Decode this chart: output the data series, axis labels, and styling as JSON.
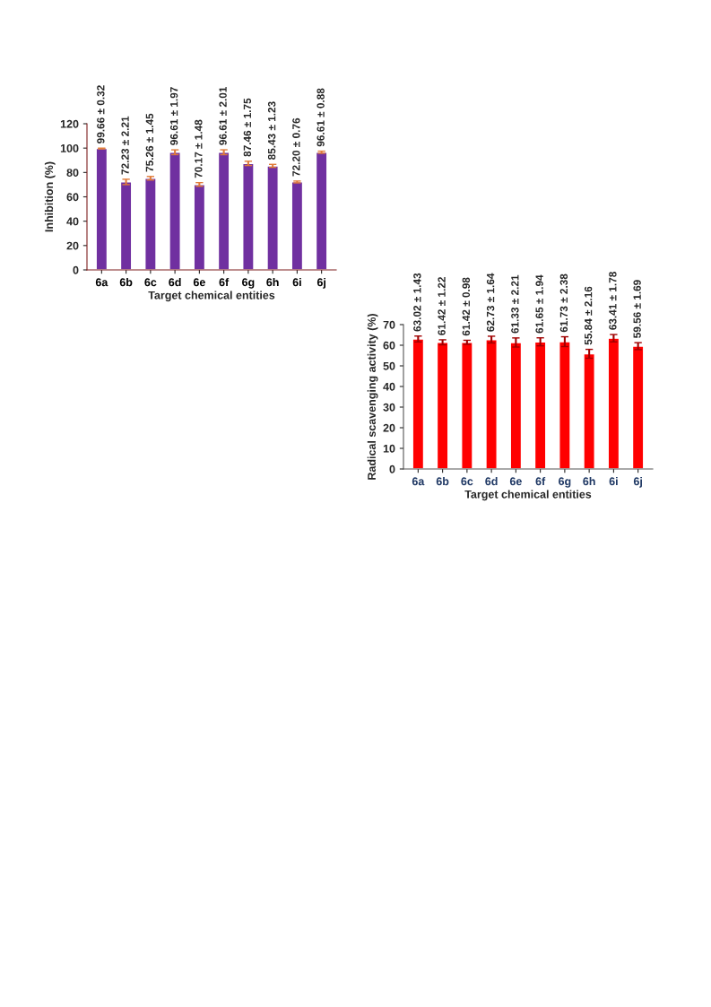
{
  "chart_data": [
    {
      "type": "bar",
      "xlabel": "Target chemical entities",
      "ylabel": "Inhibition (%)",
      "categories": [
        "6a",
        "6b",
        "6c",
        "6d",
        "6e",
        "6f",
        "6g",
        "6h",
        "6i",
        "6j"
      ],
      "series": [
        {
          "color": "#7030a0",
          "values": [
            99.66,
            72.23,
            75.26,
            96.61,
            70.17,
            96.61,
            87.46,
            85.43,
            72.2,
            96.61
          ],
          "errors": [
            0.32,
            2.21,
            1.45,
            1.97,
            1.48,
            2.01,
            1.75,
            1.23,
            0.76,
            0.88
          ],
          "value_labels": [
            "99.66 ± 0.32",
            "72.23 ± 2.21",
            "75.26 ± 1.45",
            "96.61 ± 1.97",
            "70.17 ± 1.48",
            "96.61 ± 2.01",
            "87.46 ± 1.75",
            "85.43 ± 1.23",
            "72.20 ± 0.76",
            "96.61 ± 0.88"
          ]
        }
      ],
      "ylim": [
        0,
        120
      ],
      "yticks": [
        0,
        20,
        40,
        60,
        80,
        100,
        120
      ],
      "grid": false,
      "legend": false
    },
    {
      "type": "bar",
      "xlabel": "Target chemical entities",
      "ylabel": "Radical scavenging activity (%)",
      "categories": [
        "6a",
        "6b",
        "6c",
        "6d",
        "6e",
        "6f",
        "6g",
        "6h",
        "6i",
        "6j"
      ],
      "series": [
        {
          "color": "#ff0000",
          "values": [
            63.02,
            61.42,
            61.42,
            62.73,
            61.33,
            61.65,
            61.73,
            55.84,
            63.41,
            59.56
          ],
          "errors": [
            1.43,
            1.22,
            0.98,
            1.64,
            2.21,
            1.94,
            2.38,
            2.16,
            1.78,
            1.69
          ],
          "value_labels": [
            "63.02 ± 1.43",
            "61.42 ± 1.22",
            "61.42 ± 0.98",
            "62.73 ± 1.64",
            "61.33 ± 2.21",
            "61.65 ± 1.94",
            "61.73 ± 2.38",
            "55.84 ± 2.16",
            "63.41 ± 1.78",
            "59.56 ± 1.69"
          ]
        }
      ],
      "ylim": [
        0,
        70
      ],
      "yticks": [
        0,
        10,
        20,
        30,
        40,
        50,
        60,
        70
      ],
      "grid": false,
      "legend": false
    }
  ]
}
